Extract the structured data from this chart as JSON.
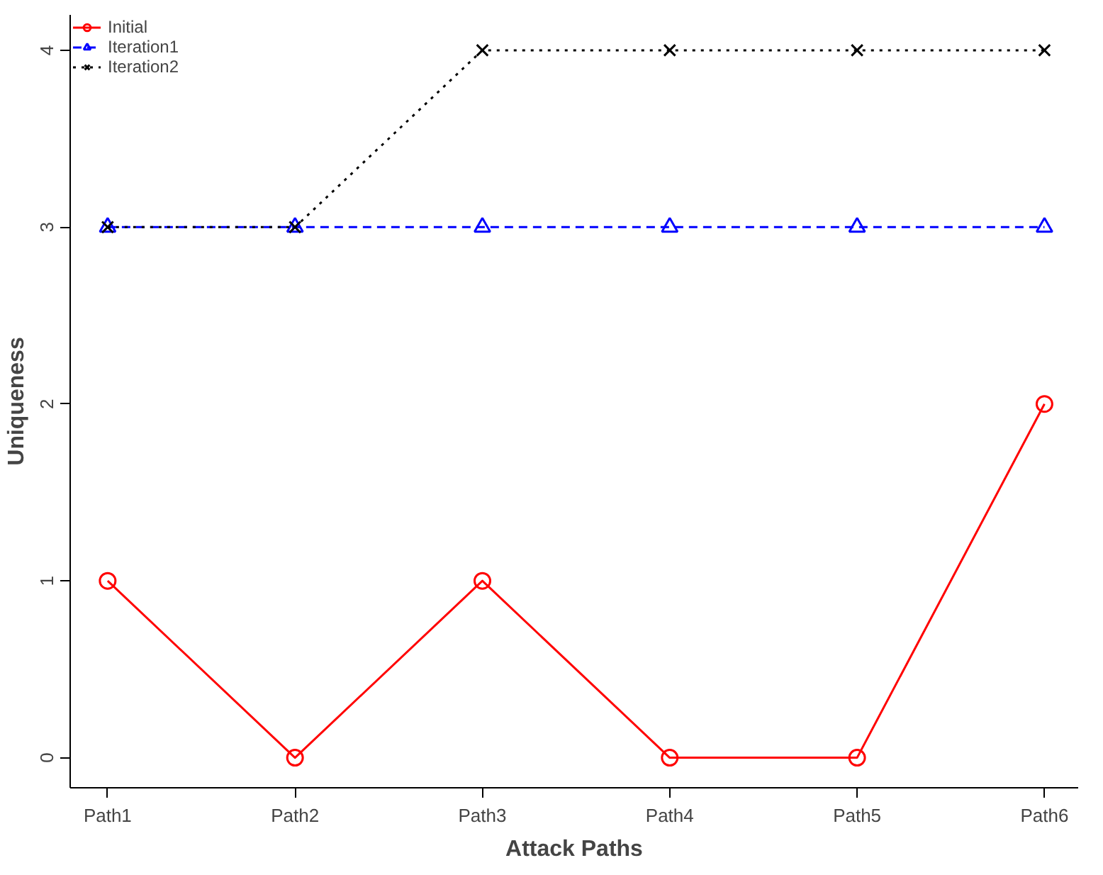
{
  "chart_data": {
    "type": "line",
    "xlabel": "Attack Paths",
    "ylabel": "Uniqueness",
    "categories": [
      "Path1",
      "Path2",
      "Path3",
      "Path4",
      "Path5",
      "Path6"
    ],
    "ylim": [
      -0.17,
      4.2
    ],
    "yticks": [
      0,
      1,
      2,
      3,
      4
    ],
    "grid": false,
    "legend": "top left",
    "series": [
      {
        "name": "Initial",
        "color": "#ff0000",
        "values": [
          1,
          0,
          1,
          0,
          0,
          2
        ],
        "marker": "circle",
        "line_style": "solid"
      },
      {
        "name": "Iteration1",
        "color": "#0000ff",
        "values": [
          3,
          3,
          3,
          3,
          3,
          3
        ],
        "marker": "triangle",
        "line_style": "dashed"
      },
      {
        "name": "Iteration2",
        "color": "#000000",
        "values": [
          3,
          3,
          4,
          4,
          4,
          4
        ],
        "marker": "cross",
        "line_style": "dotted"
      }
    ]
  }
}
